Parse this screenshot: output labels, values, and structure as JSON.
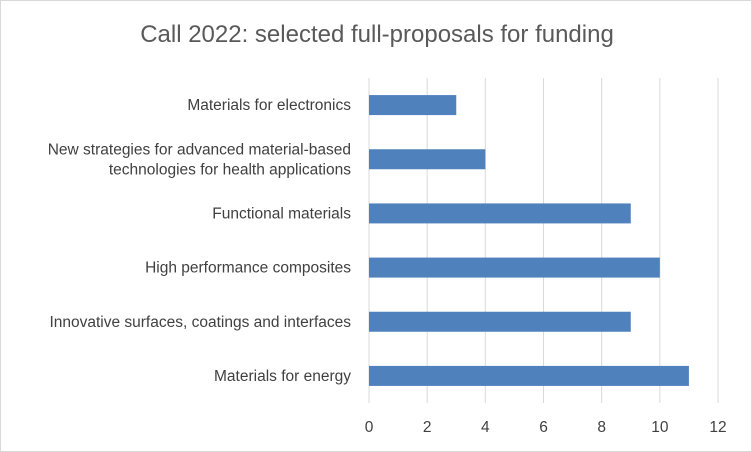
{
  "chart_data": {
    "type": "bar",
    "orientation": "horizontal",
    "title": "Call 2022: selected full-proposals for funding",
    "categories": [
      [
        "Materials for electronics"
      ],
      [
        "New strategies for advanced material-based",
        "technologies for health applications"
      ],
      [
        "Functional materials"
      ],
      [
        "High performance composites"
      ],
      [
        "Innovative surfaces, coatings and interfaces"
      ],
      [
        "Materials for energy"
      ]
    ],
    "values": [
      3,
      4,
      9,
      10,
      9,
      11
    ],
    "xlim": [
      0,
      12
    ],
    "xticks": [
      0,
      2,
      4,
      6,
      8,
      10,
      12
    ],
    "grid": true,
    "bar_color": "#4f81bd",
    "grid_color": "#d9d9d9"
  }
}
